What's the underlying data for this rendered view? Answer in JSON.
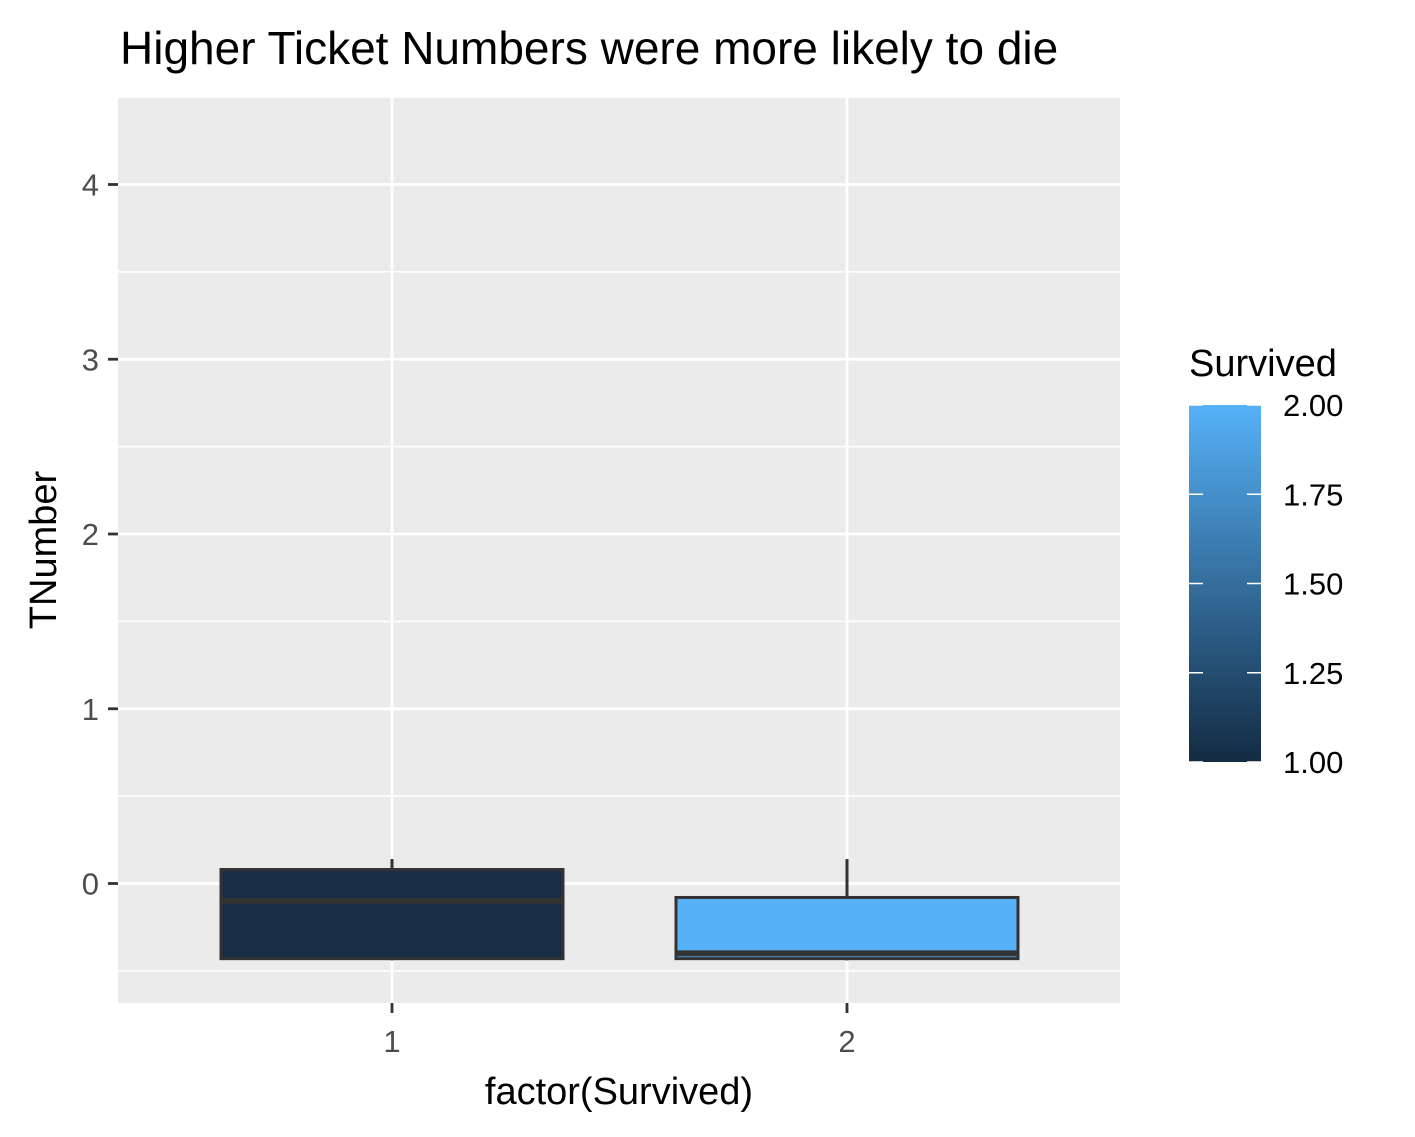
{
  "chart_data": {
    "type": "boxplot",
    "title": "Higher Ticket Numbers were more likely to die",
    "xlabel": "factor(Survived)",
    "ylabel": "TNumber",
    "categories": [
      "1",
      "2"
    ],
    "y_ticks": [
      0,
      1,
      2,
      3,
      4
    ],
    "ylim": [
      -0.68,
      4.5
    ],
    "grid": true,
    "boxes": [
      {
        "category": "1",
        "lower_whisker": -0.44,
        "q1": -0.43,
        "median": -0.1,
        "q3": 0.08,
        "upper_whisker": 0.14,
        "fill": "#182D46"
      },
      {
        "category": "2",
        "lower_whisker": -0.44,
        "q1": -0.43,
        "median": -0.4,
        "q3": -0.08,
        "upper_whisker": 0.14,
        "fill": "#56B1F7"
      }
    ],
    "legend": {
      "title": "Survived",
      "position": "right",
      "type": "colorbar",
      "min": 1.0,
      "max": 2.0,
      "ticks": [
        "1.00",
        "1.25",
        "1.50",
        "1.75",
        "2.00"
      ],
      "color_low": "#132B43",
      "color_high": "#56B1F7"
    }
  }
}
